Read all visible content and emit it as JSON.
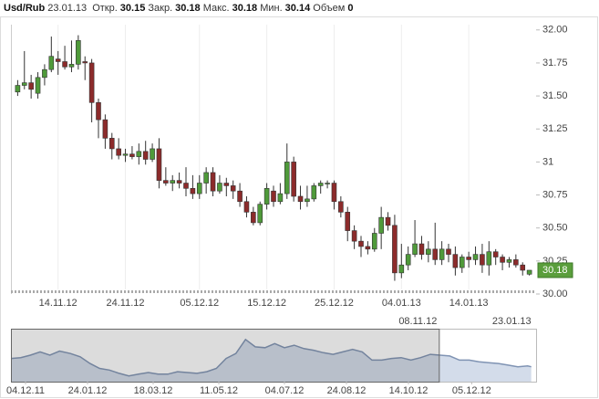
{
  "header": {
    "symbol": "Usd/Rub",
    "date": "23.01.13",
    "fields": [
      {
        "label": "Откр.",
        "value": 30.15
      },
      {
        "label": "Закр.",
        "value": 30.18
      },
      {
        "label": "Макс.",
        "value": 30.18
      },
      {
        "label": "Мин.",
        "value": 30.14
      },
      {
        "label": "Объем",
        "value": 0
      }
    ]
  },
  "chart_data": [
    {
      "type": "candlestick",
      "up_color": "#4f9a3a",
      "down_color": "#8c2b2b",
      "grid": true,
      "xlim": [
        "07.11.12",
        "24.01.13"
      ],
      "xticks": [
        "14.11.12",
        "24.11.12",
        "05.12.12",
        "15.12.12",
        "25.12.12",
        "04.01.13",
        "14.01.13"
      ],
      "ylim": [
        30,
        32.04
      ],
      "yticks": [
        {
          "value": 30,
          "label": "30.00"
        },
        30.25,
        {
          "value": 30.5,
          "label": "30.50"
        },
        30.75,
        31,
        31.25,
        {
          "value": 31.5,
          "label": "31.50"
        },
        31.75,
        {
          "value": 32,
          "label": "32.00"
        }
      ],
      "x": [
        "08.11.12",
        "09.11.12",
        "10.11.12",
        "11.11.12",
        "12.11.12",
        "13.11.12",
        "14.11.12",
        "15.11.12",
        "16.11.12",
        "17.11.12",
        "18.11.12",
        "19.11.12",
        "20.11.12",
        "21.11.12",
        "22.11.12",
        "23.11.12",
        "24.11.12",
        "25.11.12",
        "26.11.12",
        "27.11.12",
        "28.11.12",
        "29.11.12",
        "30.11.12",
        "01.12.12",
        "02.12.12",
        "03.12.12",
        "04.12.12",
        "05.12.12",
        "06.12.12",
        "07.12.12",
        "08.12.12",
        "09.12.12",
        "10.12.12",
        "11.12.12",
        "12.12.12",
        "13.12.12",
        "14.12.12",
        "15.12.12",
        "16.12.12",
        "17.12.12",
        "18.12.12",
        "19.12.12",
        "20.12.12",
        "21.12.12",
        "22.12.12",
        "23.12.12",
        "24.12.12",
        "25.12.12",
        "26.12.12",
        "27.12.12",
        "28.12.12",
        "29.12.12",
        "30.12.12",
        "31.12.12",
        "01.01.13",
        "02.01.13",
        "03.01.13",
        "04.01.13",
        "05.01.13",
        "06.01.13",
        "07.01.13",
        "08.01.13",
        "09.01.13",
        "10.01.13",
        "11.01.13",
        "12.01.13",
        "13.01.13",
        "14.01.13",
        "15.01.13",
        "16.01.13",
        "17.01.13",
        "18.01.13",
        "19.01.13",
        "20.01.13",
        "21.01.13",
        "22.01.13",
        "23.01.13"
      ],
      "open": [
        31.53,
        31.58,
        31.6,
        31.52,
        31.64,
        31.7,
        31.78,
        31.76,
        31.72,
        31.74,
        31.76,
        31.75,
        31.45,
        31.32,
        31.18,
        31.1,
        31.05,
        31.06,
        31.04,
        31.08,
        31.02,
        31.1,
        30.86,
        30.84,
        30.86,
        30.84,
        30.8,
        30.76,
        30.84,
        30.92,
        30.78,
        30.84,
        30.82,
        30.78,
        30.7,
        30.62,
        30.54,
        30.68,
        30.78,
        30.7,
        30.76,
        31.0,
        30.74,
        30.7,
        30.72,
        30.82,
        30.84,
        30.84,
        30.7,
        30.62,
        30.48,
        30.4,
        30.36,
        30.34,
        30.46,
        30.58,
        30.52,
        30.16,
        30.22,
        30.3,
        30.38,
        30.3,
        30.34,
        30.26,
        30.34,
        30.3,
        30.2,
        30.28,
        30.26,
        30.3,
        30.22,
        30.32,
        30.28,
        30.24,
        30.26,
        30.22,
        30.15
      ],
      "high": [
        31.62,
        31.84,
        31.66,
        31.68,
        31.74,
        31.95,
        31.84,
        31.88,
        31.92,
        31.96,
        31.8,
        31.78,
        31.48,
        31.36,
        31.22,
        31.18,
        31.1,
        31.12,
        31.14,
        31.16,
        31.14,
        31.18,
        30.96,
        30.9,
        30.92,
        30.96,
        30.9,
        30.9,
        30.96,
        30.96,
        30.9,
        30.88,
        30.86,
        30.84,
        30.74,
        30.66,
        30.7,
        30.84,
        30.82,
        30.84,
        31.14,
        31.04,
        30.82,
        30.82,
        30.84,
        30.86,
        30.86,
        30.86,
        30.74,
        30.66,
        30.52,
        30.44,
        30.4,
        30.5,
        30.66,
        30.62,
        30.6,
        30.38,
        30.36,
        30.56,
        30.44,
        30.4,
        30.54,
        30.4,
        30.38,
        30.36,
        30.3,
        30.32,
        30.36,
        30.38,
        30.4,
        30.34,
        30.3,
        30.28,
        30.3,
        30.24,
        30.18
      ],
      "low": [
        31.5,
        31.55,
        31.48,
        31.48,
        31.58,
        31.68,
        31.66,
        31.7,
        31.68,
        31.7,
        31.62,
        31.3,
        31.18,
        31.1,
        31.02,
        31.02,
        31.0,
        31.02,
        30.98,
        30.98,
        31.0,
        30.8,
        30.82,
        30.78,
        30.8,
        30.74,
        30.72,
        30.72,
        30.76,
        30.74,
        30.76,
        30.74,
        30.72,
        30.66,
        30.58,
        30.52,
        30.52,
        30.64,
        30.66,
        30.68,
        30.72,
        30.7,
        30.64,
        30.66,
        30.7,
        30.76,
        30.8,
        30.64,
        30.58,
        30.4,
        30.34,
        30.28,
        30.3,
        30.32,
        30.34,
        30.48,
        30.1,
        30.12,
        30.18,
        30.28,
        30.26,
        30.24,
        30.22,
        30.22,
        30.24,
        30.14,
        30.16,
        30.2,
        30.22,
        30.16,
        30.14,
        30.22,
        30.18,
        30.2,
        30.2,
        30.14,
        30.14
      ],
      "close": [
        31.58,
        31.6,
        31.55,
        31.64,
        31.7,
        31.8,
        31.76,
        31.72,
        31.74,
        31.92,
        31.75,
        31.45,
        31.32,
        31.18,
        31.1,
        31.05,
        31.06,
        31.04,
        31.08,
        31.02,
        31.1,
        30.86,
        30.84,
        30.86,
        30.84,
        30.8,
        30.76,
        30.84,
        30.92,
        30.78,
        30.84,
        30.82,
        30.78,
        30.7,
        30.62,
        30.54,
        30.68,
        30.8,
        30.7,
        30.76,
        31.0,
        30.74,
        30.7,
        30.72,
        30.82,
        30.84,
        30.84,
        30.7,
        30.62,
        30.48,
        30.4,
        30.36,
        30.34,
        30.46,
        30.58,
        30.52,
        30.16,
        30.22,
        30.3,
        30.38,
        30.3,
        30.34,
        30.26,
        30.34,
        30.3,
        30.2,
        30.28,
        30.26,
        30.3,
        30.22,
        30.32,
        30.28,
        30.24,
        30.26,
        30.22,
        30.18,
        30.18
      ]
    },
    {
      "type": "area",
      "color": "#7f93b3",
      "range": [
        "08.11.12",
        "23.01.13"
      ],
      "xlim": [
        "22.11.11",
        "27.01.13"
      ],
      "xticks": [
        "04.12.11",
        "24.01.12",
        "18.03.12",
        "11.05.12",
        "04.07.12",
        "24.08.12",
        "14.10.12",
        "05.12.12"
      ],
      "ylim": [
        28.4,
        34.8
      ],
      "x": [
        "22.11.11",
        "30.11.11",
        "08.12.11",
        "16.12.11",
        "24.12.11",
        "01.01.12",
        "10.01.12",
        "18.01.12",
        "26.01.12",
        "03.02.12",
        "11.02.12",
        "19.02.12",
        "27.02.12",
        "06.03.12",
        "14.03.12",
        "22.03.12",
        "30.03.12",
        "07.04.12",
        "15.04.12",
        "23.04.12",
        "01.05.12",
        "09.05.12",
        "17.05.12",
        "25.05.12",
        "02.06.12",
        "10.06.12",
        "18.06.12",
        "26.06.12",
        "04.07.12",
        "12.07.12",
        "20.07.12",
        "28.07.12",
        "05.08.12",
        "13.08.12",
        "21.08.12",
        "29.08.12",
        "06.09.12",
        "14.09.12",
        "22.09.12",
        "30.09.12",
        "08.10.12",
        "16.10.12",
        "24.10.12",
        "01.11.12",
        "09.11.12",
        "17.11.12",
        "25.11.12",
        "03.12.12",
        "11.12.12",
        "19.12.12",
        "27.12.12",
        "04.01.13",
        "12.01.13",
        "20.01.13",
        "23.01.13"
      ],
      "values": [
        31.2,
        31.3,
        31.6,
        32.0,
        31.6,
        32.1,
        31.8,
        31.4,
        30.6,
        30.0,
        29.8,
        29.4,
        29.1,
        29.3,
        29.5,
        29.3,
        29.3,
        29.6,
        29.5,
        29.4,
        29.6,
        30.0,
        31.2,
        31.8,
        33.5,
        32.6,
        32.5,
        33.0,
        32.5,
        32.8,
        32.4,
        32.2,
        31.9,
        31.7,
        32.0,
        32.3,
        32.0,
        31.0,
        31.0,
        31.2,
        31.3,
        31.0,
        31.3,
        31.7,
        31.6,
        31.5,
        31.0,
        31.0,
        30.8,
        30.7,
        30.6,
        30.4,
        30.2,
        30.3,
        30.2
      ]
    }
  ]
}
